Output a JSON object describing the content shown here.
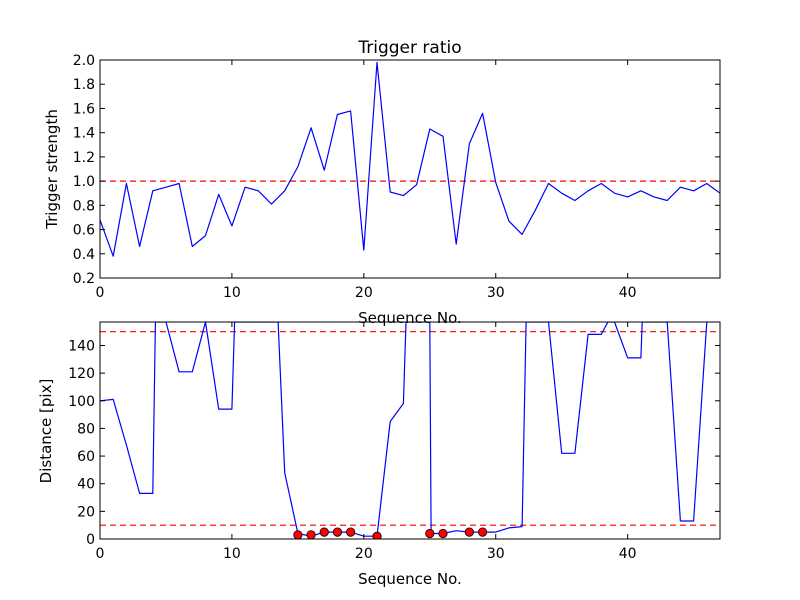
{
  "chart_data": [
    {
      "type": "line",
      "title": "Trigger ratio",
      "xlabel": "Sequence No.",
      "ylabel": "Trigger strength",
      "xlim": [
        0,
        47
      ],
      "ylim": [
        0.2,
        2.0
      ],
      "xticks": [
        0,
        10,
        20,
        30,
        40
      ],
      "xtick_labels": [
        "0",
        "10",
        "20",
        "30",
        "40"
      ],
      "yticks": [
        0.2,
        0.4,
        0.6,
        0.8,
        1.0,
        1.2,
        1.4,
        1.6,
        1.8,
        2.0
      ],
      "ytick_labels": [
        "0.2",
        "0.4",
        "0.6",
        "0.8",
        "1.0",
        "1.2",
        "1.4",
        "1.6",
        "1.8",
        "2.0"
      ],
      "grid": false,
      "series": [
        {
          "color": "#0000ff",
          "x": [
            0,
            1,
            2,
            3,
            4,
            5,
            6,
            7,
            8,
            9,
            10,
            11,
            12,
            13,
            14,
            15,
            16,
            17,
            18,
            19,
            20,
            21,
            22,
            23,
            24,
            25,
            26,
            27,
            28,
            29,
            30,
            31,
            32,
            33,
            34,
            35,
            36,
            37,
            38,
            39,
            40,
            41,
            42,
            43,
            44,
            45,
            46,
            47
          ],
          "y": [
            0.68,
            0.38,
            0.98,
            0.46,
            0.92,
            0.95,
            0.98,
            0.46,
            0.55,
            0.89,
            0.63,
            0.95,
            0.92,
            0.81,
            0.92,
            1.12,
            1.44,
            1.09,
            1.55,
            1.58,
            0.43,
            1.98,
            0.91,
            0.88,
            0.97,
            1.43,
            1.37,
            0.48,
            1.31,
            1.56,
            0.99,
            0.67,
            0.56,
            0.76,
            0.98,
            0.9,
            0.84,
            0.92,
            0.98,
            0.9,
            0.87,
            0.92,
            0.87,
            0.84,
            0.95,
            0.92,
            0.98,
            0.9
          ]
        }
      ],
      "reference_lines": [
        {
          "y": 1.0,
          "color": "#ff0000",
          "style": "dashed"
        }
      ]
    },
    {
      "type": "line",
      "title": "",
      "xlabel": "Sequence No.",
      "ylabel": "Distance [pix]",
      "xlim": [
        0,
        47
      ],
      "ylim": [
        0,
        157
      ],
      "xticks": [
        0,
        10,
        20,
        30,
        40
      ],
      "xtick_labels": [
        "0",
        "10",
        "20",
        "30",
        "40"
      ],
      "yticks": [
        0,
        20,
        40,
        60,
        80,
        100,
        120,
        140
      ],
      "ytick_labels": [
        "0",
        "20",
        "40",
        "60",
        "80",
        "100",
        "120",
        "140"
      ],
      "grid": false,
      "series": [
        {
          "color": "#0000ff",
          "x": [
            0,
            1,
            2,
            3,
            4,
            4.2,
            5,
            6,
            7,
            8,
            9,
            10,
            10.2,
            11,
            12,
            13,
            13.5,
            14,
            15,
            16,
            17,
            18,
            19,
            20,
            21,
            22,
            23,
            23.2,
            24,
            25,
            25.1,
            26,
            27,
            28,
            29,
            30,
            31,
            32,
            32.3,
            33,
            34,
            35,
            36,
            37,
            38,
            38.5,
            39,
            40,
            41,
            41.1,
            42,
            43,
            44,
            45,
            46
          ],
          "y": [
            100,
            101,
            68,
            33,
            33,
            157,
            157,
            121,
            121,
            157,
            94,
            94,
            157,
            157,
            157,
            157,
            157,
            48,
            4,
            2,
            5,
            5,
            5,
            2,
            2,
            85,
            98,
            157,
            157,
            157,
            4,
            4,
            6,
            5,
            5,
            5,
            8,
            9,
            157,
            157,
            157,
            62,
            62,
            148,
            148,
            157,
            157,
            131,
            131,
            157,
            157,
            157,
            13,
            13,
            157
          ],
          "markers": false
        },
        {
          "color": "#ff0000",
          "style": "markers",
          "x": [
            15,
            16,
            17,
            18,
            19,
            21,
            25,
            26,
            28,
            29
          ],
          "y": [
            3,
            3,
            5,
            5,
            5,
            2,
            4,
            4,
            5,
            5
          ]
        }
      ],
      "reference_lines": [
        {
          "y": 150,
          "color": "#ff0000",
          "style": "dashed"
        },
        {
          "y": 10,
          "color": "#ff0000",
          "style": "dashed"
        }
      ]
    }
  ]
}
